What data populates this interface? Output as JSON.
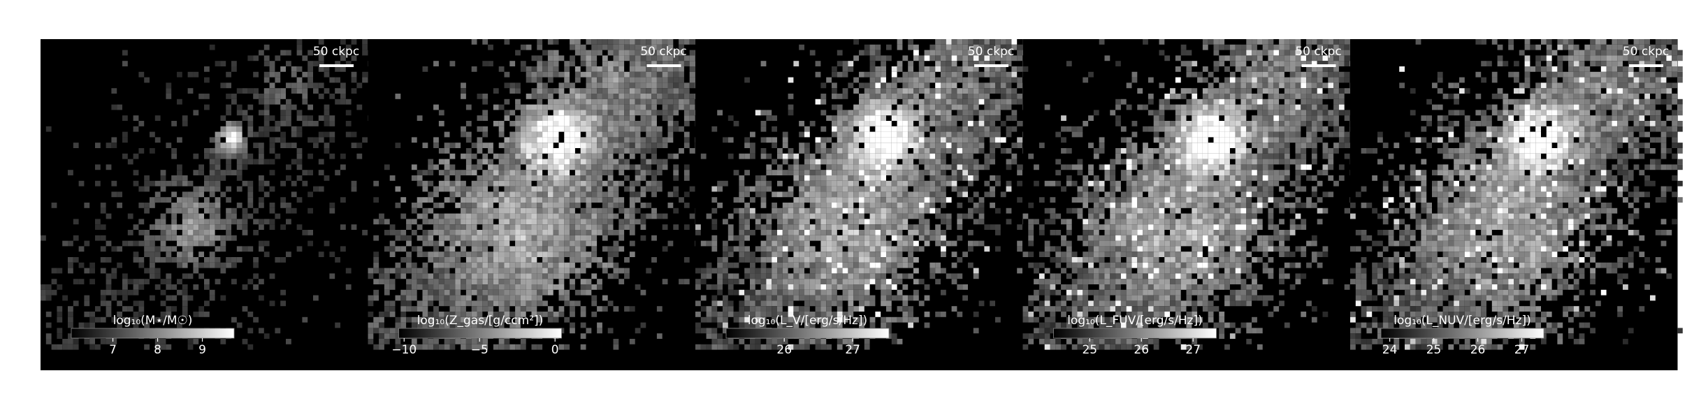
{
  "chart_data": [
    {
      "type": "image",
      "scale_label": "50 ckpc",
      "colorbar_label": "log₁₀(M⋆/M☉)",
      "clim": [
        6.07,
        9.71
      ],
      "cticks": [
        7,
        8,
        9
      ]
    },
    {
      "type": "image",
      "scale_label": "50 ckpc",
      "colorbar_label": "log₁₀(Z_gas/[g/ccm²])",
      "clim": [
        -10.36,
        0.43
      ],
      "cticks": [
        {
          "value": -10,
          "label": "−10"
        },
        {
          "value": -5,
          "label": "−5"
        },
        0
      ]
    },
    {
      "type": "image",
      "scale_label": "50 ckpc",
      "colorbar_label": "log₁₀(L_V/[erg/s/Hz])",
      "clim": [
        25.15,
        27.53
      ],
      "cticks": [
        26,
        27
      ]
    },
    {
      "type": "image",
      "scale_label": "50 ckpc",
      "colorbar_label": "log₁₀(L_FUV/[erg/s/Hz])",
      "clim": [
        24.3,
        27.45
      ],
      "cticks": [
        25,
        26,
        27
      ]
    },
    {
      "type": "image",
      "scale_label": "50 ckpc",
      "colorbar_label": "log₁₀(L_NUV/[erg/s/Hz])",
      "clim": [
        23.8,
        27.5
      ],
      "cticks": [
        24,
        25,
        26,
        27
      ]
    }
  ]
}
